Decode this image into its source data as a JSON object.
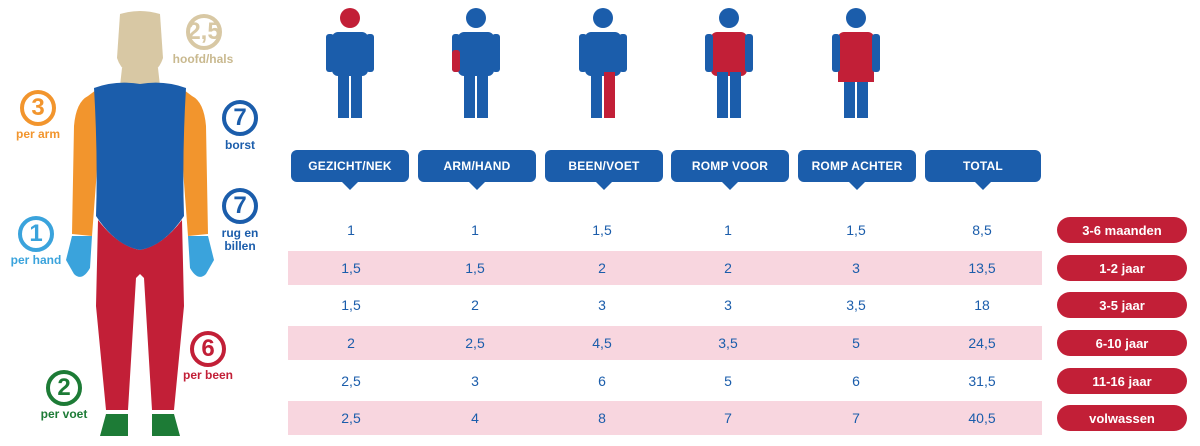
{
  "colors": {
    "blue": "#1b5dab",
    "red": "#c21f37",
    "orange": "#f2952d",
    "light_blue": "#3aa3dc",
    "green": "#1d7b36",
    "beige": "#d8c8a4",
    "pink_row": "#f8d6df"
  },
  "body_parts": [
    {
      "id": "head",
      "value": "2,5",
      "label": "hoofd/hals",
      "color": "#d8c8a4"
    },
    {
      "id": "arm",
      "value": "3",
      "label": "per arm",
      "color": "#f2952d"
    },
    {
      "id": "chest",
      "value": "7",
      "label": "borst",
      "color": "#1b5dab"
    },
    {
      "id": "hand",
      "value": "1",
      "label": "per hand",
      "color": "#3aa3dc"
    },
    {
      "id": "back",
      "value": "7",
      "label": "rug en\nbillen",
      "color": "#1b5dab"
    },
    {
      "id": "leg",
      "value": "6",
      "label": "per been",
      "color": "#c21f37"
    },
    {
      "id": "foot",
      "value": "2",
      "label": "per voet",
      "color": "#1d7b36"
    }
  ],
  "table": {
    "headers": [
      "GEZICHT/NEK",
      "ARM/HAND",
      "BEEN/VOET",
      "ROMP VOOR",
      "ROMP ACHTER",
      "TOTAL"
    ],
    "rows": [
      {
        "values": [
          "1",
          "1",
          "1,5",
          "1",
          "1,5",
          "8,5"
        ],
        "age": "3-6 maanden"
      },
      {
        "values": [
          "1,5",
          "1,5",
          "2",
          "2",
          "3",
          "13,5"
        ],
        "age": "1-2 jaar"
      },
      {
        "values": [
          "1,5",
          "2",
          "3",
          "3",
          "3,5",
          "18"
        ],
        "age": "3-5 jaar"
      },
      {
        "values": [
          "2",
          "2,5",
          "4,5",
          "3,5",
          "5",
          "24,5"
        ],
        "age": "6-10 jaar"
      },
      {
        "values": [
          "2,5",
          "3",
          "6",
          "5",
          "6",
          "31,5"
        ],
        "age": "11-16 jaar"
      },
      {
        "values": [
          "2,5",
          "4",
          "8",
          "7",
          "7",
          "40,5"
        ],
        "age": "volwassen"
      }
    ]
  },
  "icons": [
    {
      "name": "figure-head-highlight-icon",
      "highlight": "head"
    },
    {
      "name": "figure-arm-highlight-icon",
      "highlight": "arm"
    },
    {
      "name": "figure-leg-highlight-icon",
      "highlight": "leg"
    },
    {
      "name": "figure-chest-highlight-icon",
      "highlight": "chest"
    },
    {
      "name": "figure-back-highlight-icon",
      "highlight": "back"
    }
  ]
}
